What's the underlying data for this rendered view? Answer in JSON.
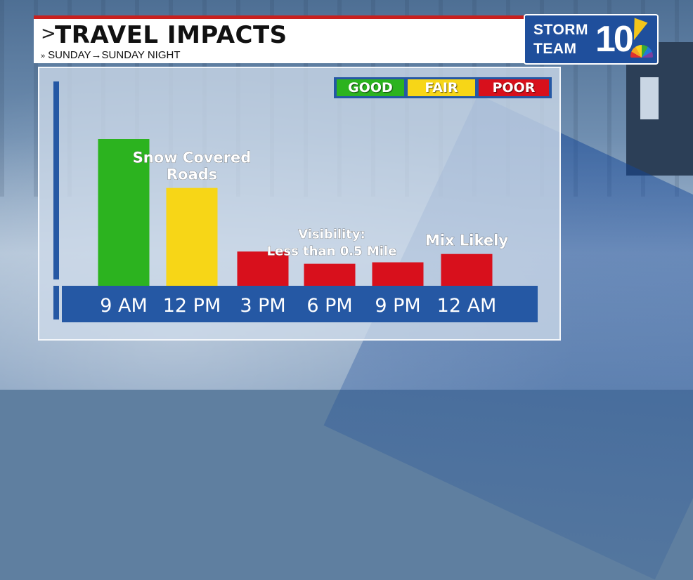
{
  "header": {
    "title": "TRAVEL IMPACTS",
    "title_arrow": ">",
    "subtitle_prefix": "»",
    "subtitle": "SUNDAY→SUNDAY NIGHT"
  },
  "logo": {
    "line1": "STORM",
    "line2": "TEAM",
    "number": "10"
  },
  "legend": [
    {
      "label": "GOOD",
      "color": "#2cb31f"
    },
    {
      "label": "FAIR",
      "color": "#f7d617"
    },
    {
      "label": "POOR",
      "color": "#d8101c"
    }
  ],
  "chart_data": {
    "type": "bar",
    "categories": [
      "9 AM",
      "12 PM",
      "3 PM",
      "6 PM",
      "9 PM",
      "12 AM"
    ],
    "values": [
      3,
      2,
      0.7,
      0.45,
      0.48,
      0.65
    ],
    "colors": [
      "#2cb31f",
      "#f7d617",
      "#d8101c",
      "#d8101c",
      "#d8101c",
      "#d8101c"
    ],
    "ylim": [
      0,
      3.1
    ],
    "annotations": [
      {
        "category_index": 1,
        "lines": [
          "Snow Covered",
          "Roads"
        ]
      },
      {
        "category_index": 3,
        "lines": [
          "Visibility:",
          "Less than 0.5 Mile"
        ]
      },
      {
        "category_index": 5,
        "lines": [
          "Mix Likely"
        ]
      }
    ]
  }
}
